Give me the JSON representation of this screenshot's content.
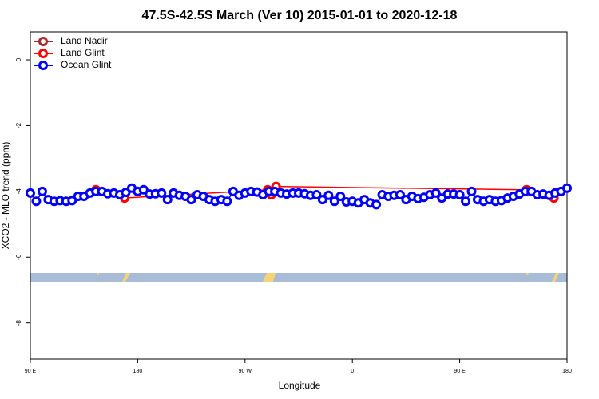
{
  "chart_data": {
    "type": "line",
    "title": "47.5S-42.5S March (Ver 10)   2015-01-01 to 2020-12-18",
    "x_label": "Longitude",
    "y_label": "XCO2 - MLO trend (ppm)",
    "xlim": [
      90,
      540
    ],
    "xticks": [
      {
        "value": 90,
        "label": "90 E"
      },
      {
        "value": 180,
        "label": "180"
      },
      {
        "value": 270,
        "label": "90 W"
      },
      {
        "value": 360,
        "label": "0"
      },
      {
        "value": 450,
        "label": "90 E"
      },
      {
        "value": 540,
        "label": "180"
      }
    ],
    "ylim": [
      -9.1,
      0.85
    ],
    "yticks": [
      0,
      -2,
      -4,
      -6,
      -8
    ],
    "legend": "top-left",
    "series": [
      {
        "name": "Land Nadir",
        "color": "#a52a2a",
        "x": [],
        "values": []
      },
      {
        "name": "Land Glint",
        "color": "#ff0000",
        "x": [
          145,
          169,
          289,
          292,
          296,
          506,
          529
        ],
        "values": [
          -3.95,
          -4.2,
          -3.95,
          -4.1,
          -3.85,
          -3.95,
          -4.2
        ]
      },
      {
        "name": "Ocean Glint",
        "color": "#0000ff",
        "x": [
          90,
          95,
          100,
          105,
          110,
          115,
          120,
          125,
          130,
          135,
          140,
          145,
          150,
          155,
          160,
          165,
          170,
          175,
          180,
          185,
          190,
          195,
          200,
          205,
          210,
          215,
          220,
          225,
          230,
          235,
          240,
          245,
          250,
          255,
          260,
          265,
          270,
          275,
          280,
          285,
          290,
          295,
          300,
          305,
          310,
          315,
          320,
          325,
          330,
          335,
          340,
          345,
          350,
          355,
          360,
          365,
          370,
          375,
          380,
          385,
          390,
          395,
          400,
          405,
          410,
          415,
          420,
          425,
          430,
          435,
          440,
          445,
          450,
          455,
          460,
          465,
          470,
          475,
          480,
          485,
          490,
          495,
          500,
          505,
          510,
          515,
          520,
          525,
          530,
          535,
          540
        ],
        "values": [
          -4.05,
          -4.3,
          -4.0,
          -4.25,
          -4.3,
          -4.28,
          -4.3,
          -4.28,
          -4.15,
          -4.15,
          -4.05,
          -4.0,
          -4.0,
          -4.07,
          -4.05,
          -4.1,
          -4.03,
          -3.9,
          -4.0,
          -3.95,
          -4.08,
          -4.07,
          -4.05,
          -4.25,
          -4.05,
          -4.12,
          -4.15,
          -4.25,
          -4.1,
          -4.15,
          -4.25,
          -4.3,
          -4.25,
          -4.3,
          -4.0,
          -4.12,
          -4.05,
          -4.0,
          -4.02,
          -4.1,
          -4.0,
          -4.0,
          -4.05,
          -4.08,
          -4.05,
          -4.05,
          -4.07,
          -4.12,
          -4.1,
          -4.25,
          -4.12,
          -4.3,
          -4.15,
          -4.32,
          -4.3,
          -4.35,
          -4.25,
          -4.35,
          -4.4,
          -4.1,
          -4.15,
          -4.12,
          -4.1,
          -4.25,
          -4.15,
          -4.22,
          -4.18,
          -4.1,
          -4.05,
          -4.2,
          -4.08,
          -4.08,
          -4.1,
          -4.3,
          -4.0,
          -4.25,
          -4.3,
          -4.25,
          -4.3,
          -4.28,
          -4.2,
          -4.15,
          -4.08,
          -4.0,
          -4.0,
          -4.1,
          -4.08,
          -4.12,
          -4.05,
          -4.0,
          -3.9
        ]
      }
    ]
  }
}
